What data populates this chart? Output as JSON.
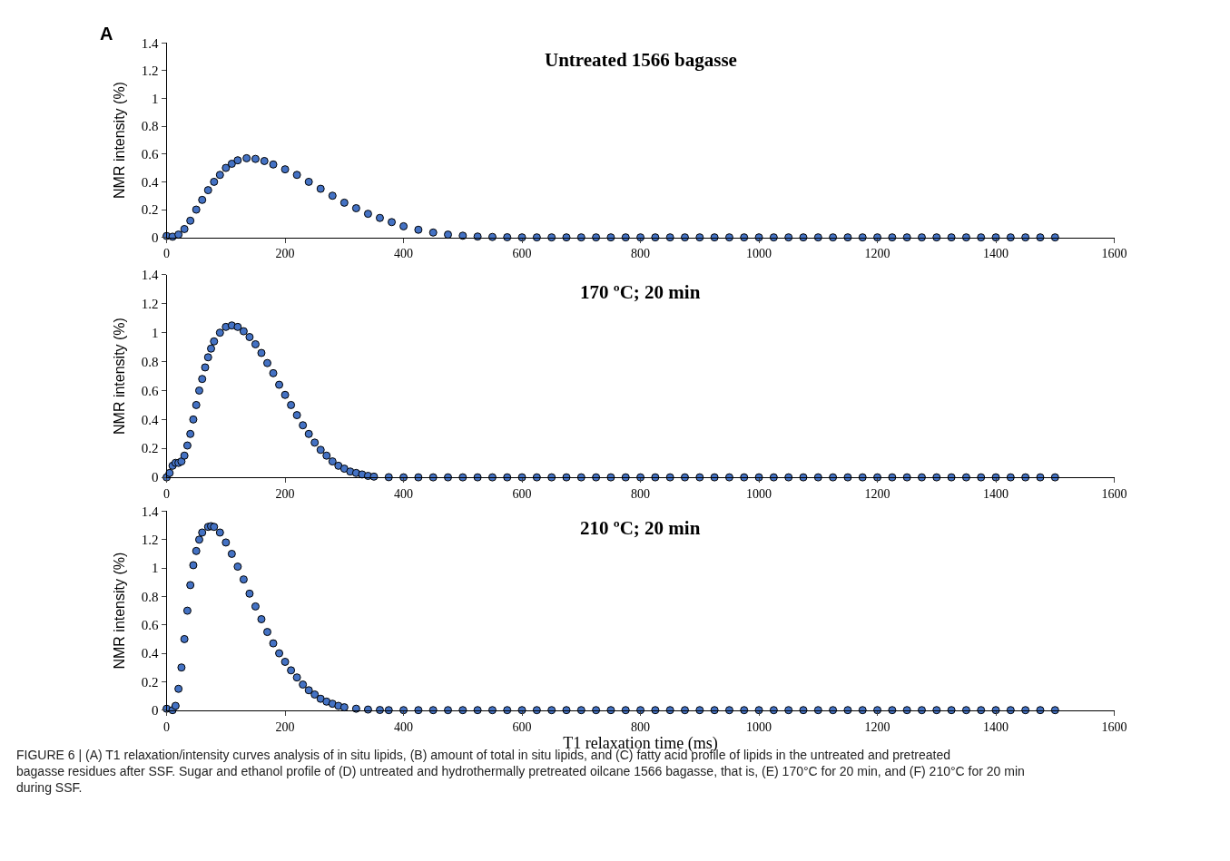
{
  "chart_data": [
    {
      "type": "scatter",
      "title": "Untreated 1566 bagasse",
      "ylabel": "NMR intensity (%)",
      "marker": "circle",
      "color": "#4472c4",
      "x": [
        0,
        10,
        20,
        30,
        40,
        50,
        60,
        70,
        80,
        90,
        100,
        110,
        120,
        135,
        150,
        165,
        180,
        200,
        220,
        240,
        260,
        280,
        300,
        320,
        340,
        360,
        380,
        400,
        425,
        450,
        475,
        500,
        525,
        550,
        575,
        600,
        625,
        650,
        675,
        700,
        725,
        750,
        775,
        800,
        825,
        850,
        875,
        900,
        925,
        950,
        975,
        1000,
        1025,
        1050,
        1075,
        1100,
        1125,
        1150,
        1175,
        1200,
        1225,
        1250,
        1275,
        1300,
        1325,
        1350,
        1375,
        1400,
        1425,
        1450,
        1475,
        1500
      ],
      "values": [
        0.01,
        0.005,
        0.02,
        0.06,
        0.12,
        0.2,
        0.27,
        0.34,
        0.4,
        0.45,
        0.5,
        0.53,
        0.555,
        0.57,
        0.565,
        0.55,
        0.525,
        0.49,
        0.45,
        0.4,
        0.35,
        0.3,
        0.25,
        0.21,
        0.17,
        0.14,
        0.11,
        0.08,
        0.055,
        0.035,
        0.02,
        0.012,
        0.006,
        0.003,
        0.001,
        0,
        0,
        0,
        0,
        0,
        0,
        0,
        0,
        0,
        0,
        0,
        0,
        0,
        0,
        0,
        0,
        0,
        0,
        0,
        0,
        0,
        0,
        0,
        0,
        0,
        0,
        0,
        0,
        0,
        0,
        0,
        0,
        0,
        0,
        0,
        0,
        0
      ],
      "xlim": [
        0,
        1600
      ],
      "xticks": [
        0,
        200,
        400,
        600,
        800,
        1000,
        1200,
        1400,
        1600
      ],
      "ylim": [
        0,
        1.4
      ],
      "yticks": [
        0,
        0.2,
        0.4,
        0.6,
        0.8,
        1,
        1.2,
        1.4
      ],
      "annotations": [
        "A"
      ]
    },
    {
      "type": "scatter",
      "title": "170 ºC; 20 min",
      "ylabel": "NMR intensity (%)",
      "marker": "circle",
      "color": "#4472c4",
      "x": [
        0,
        5,
        10,
        15,
        20,
        25,
        30,
        35,
        40,
        45,
        50,
        55,
        60,
        65,
        70,
        75,
        80,
        90,
        100,
        110,
        120,
        130,
        140,
        150,
        160,
        170,
        180,
        190,
        200,
        210,
        220,
        230,
        240,
        250,
        260,
        270,
        280,
        290,
        300,
        310,
        320,
        330,
        340,
        350,
        375,
        400,
        425,
        450,
        475,
        500,
        525,
        550,
        575,
        600,
        625,
        650,
        675,
        700,
        725,
        750,
        775,
        800,
        825,
        850,
        875,
        900,
        925,
        950,
        975,
        1000,
        1025,
        1050,
        1075,
        1100,
        1125,
        1150,
        1175,
        1200,
        1225,
        1250,
        1275,
        1300,
        1325,
        1350,
        1375,
        1400,
        1425,
        1450,
        1475,
        1500
      ],
      "values": [
        0,
        0.03,
        0.08,
        0.1,
        0.1,
        0.11,
        0.15,
        0.22,
        0.3,
        0.4,
        0.5,
        0.6,
        0.68,
        0.76,
        0.83,
        0.89,
        0.94,
        1.0,
        1.04,
        1.05,
        1.04,
        1.01,
        0.97,
        0.92,
        0.86,
        0.79,
        0.72,
        0.64,
        0.57,
        0.5,
        0.43,
        0.36,
        0.3,
        0.24,
        0.19,
        0.15,
        0.11,
        0.08,
        0.06,
        0.04,
        0.03,
        0.02,
        0.01,
        0.005,
        0.001,
        0,
        0,
        0,
        0,
        0,
        0,
        0,
        0,
        0,
        0,
        0,
        0,
        0,
        0,
        0,
        0,
        0,
        0,
        0,
        0,
        0,
        0,
        0,
        0,
        0,
        0,
        0,
        0,
        0,
        0,
        0,
        0,
        0,
        0,
        0,
        0,
        0,
        0,
        0,
        0,
        0,
        0,
        0,
        0,
        0
      ],
      "xlim": [
        0,
        1600
      ],
      "xticks": [
        0,
        200,
        400,
        600,
        800,
        1000,
        1200,
        1400,
        1600
      ],
      "ylim": [
        0,
        1.4
      ],
      "yticks": [
        0,
        0.2,
        0.4,
        0.6,
        0.8,
        1,
        1.2,
        1.4
      ]
    },
    {
      "type": "scatter",
      "title": "210 ºC; 20 min",
      "ylabel": "NMR intensity (%)",
      "xlabel": "T1 relaxation time (ms)",
      "marker": "circle",
      "color": "#4472c4",
      "x": [
        0,
        10,
        15,
        20,
        25,
        30,
        35,
        40,
        45,
        50,
        55,
        60,
        70,
        75,
        80,
        90,
        100,
        110,
        120,
        130,
        140,
        150,
        160,
        170,
        180,
        190,
        200,
        210,
        220,
        230,
        240,
        250,
        260,
        270,
        280,
        290,
        300,
        320,
        340,
        360,
        375,
        400,
        425,
        450,
        475,
        500,
        525,
        550,
        575,
        600,
        625,
        650,
        675,
        700,
        725,
        750,
        775,
        800,
        825,
        850,
        875,
        900,
        925,
        950,
        975,
        1000,
        1025,
        1050,
        1075,
        1100,
        1125,
        1150,
        1175,
        1200,
        1225,
        1250,
        1275,
        1300,
        1325,
        1350,
        1375,
        1400,
        1425,
        1450,
        1475,
        1500
      ],
      "values": [
        0.01,
        0,
        0.03,
        0.15,
        0.3,
        0.5,
        0.7,
        0.88,
        1.02,
        1.12,
        1.2,
        1.25,
        1.29,
        1.295,
        1.29,
        1.25,
        1.18,
        1.1,
        1.01,
        0.92,
        0.82,
        0.73,
        0.64,
        0.55,
        0.47,
        0.4,
        0.34,
        0.28,
        0.23,
        0.18,
        0.14,
        0.11,
        0.08,
        0.06,
        0.045,
        0.03,
        0.02,
        0.01,
        0.004,
        0.001,
        0,
        0,
        0,
        0,
        0,
        0,
        0,
        0,
        0,
        0,
        0,
        0,
        0,
        0,
        0,
        0,
        0,
        0,
        0,
        0,
        0,
        0,
        0,
        0,
        0,
        0,
        0,
        0,
        0,
        0,
        0,
        0,
        0,
        0,
        0,
        0,
        0,
        0,
        0,
        0,
        0,
        0,
        0,
        0,
        0,
        0
      ],
      "xlim": [
        0,
        1600
      ],
      "xticks": [
        0,
        200,
        400,
        600,
        800,
        1000,
        1200,
        1400,
        1600
      ],
      "ylim": [
        0,
        1.4
      ],
      "yticks": [
        0,
        0.2,
        0.4,
        0.6,
        0.8,
        1,
        1.2,
        1.4
      ],
      "annotations": [
        "FIGURE 6 | (A) T1 relaxation/intensity curves analysis of in situ lipids, (B) amount of total in situ lipids, and (C) fatty acid profile of lipids in the untreated and pretreated bagasse residues after SSF. Sugar and ethanol profile of (D) untreated and hydrothermally pretreated oilcane 1566 bagasse, that is, (E) 170°C for 20 min, and (F) 210°C for 20 min during SSF."
      ]
    }
  ]
}
